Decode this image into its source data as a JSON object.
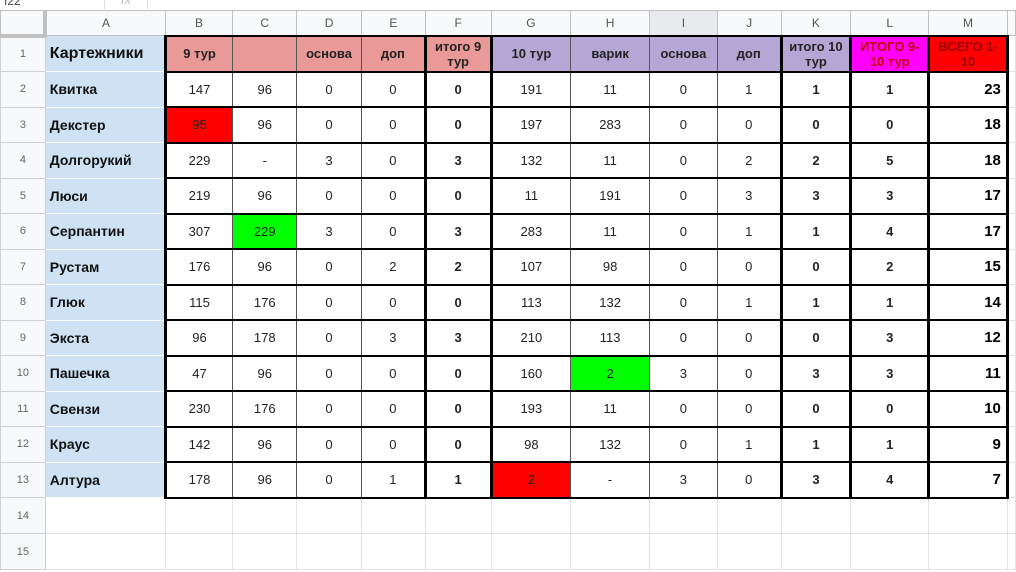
{
  "formula_bar": {
    "name_box": "I22",
    "fx": "fx"
  },
  "columns": [
    "A",
    "B",
    "C",
    "D",
    "E",
    "F",
    "G",
    "H",
    "I",
    "J",
    "K",
    "L",
    "M"
  ],
  "header": [
    "Картежники",
    "9 тур",
    "",
    "основа",
    "доп",
    "итого 9 тур",
    "10 тур",
    "варик",
    "основа",
    "доп",
    "итого 10 тур",
    "ИТОГО 9-10 тур",
    "ВСЕГО 1- 10"
  ],
  "rows": [
    [
      "Квитка",
      "147",
      "96",
      "0",
      "0",
      "0",
      "191",
      "11",
      "0",
      "1",
      "1",
      "1",
      "23"
    ],
    [
      "Декстер",
      "95",
      "96",
      "0",
      "0",
      "0",
      "197",
      "283",
      "0",
      "0",
      "0",
      "0",
      "18"
    ],
    [
      "Долгорукий",
      "229",
      "-",
      "3",
      "0",
      "3",
      "132",
      "11",
      "0",
      "2",
      "2",
      "5",
      "18"
    ],
    [
      "Люси",
      "219",
      "96",
      "0",
      "0",
      "0",
      "11",
      "191",
      "0",
      "3",
      "3",
      "3",
      "17"
    ],
    [
      "Серпантин",
      "307",
      "229",
      "3",
      "0",
      "3",
      "283",
      "11",
      "0",
      "1",
      "1",
      "4",
      "17"
    ],
    [
      "Рустам",
      "176",
      "96",
      "0",
      "2",
      "2",
      "107",
      "98",
      "0",
      "0",
      "0",
      "2",
      "15"
    ],
    [
      "Глюк",
      "115",
      "176",
      "0",
      "0",
      "0",
      "113",
      "132",
      "0",
      "1",
      "1",
      "1",
      "14"
    ],
    [
      "Экста",
      "96",
      "178",
      "0",
      "3",
      "3",
      "210",
      "113",
      "0",
      "0",
      "0",
      "3",
      "12"
    ],
    [
      "Пашечка",
      "47",
      "96",
      "0",
      "0",
      "0",
      "160",
      "2",
      "3",
      "0",
      "3",
      "3",
      "11"
    ],
    [
      "Свензи",
      "230",
      "176",
      "0",
      "0",
      "0",
      "193",
      "11",
      "0",
      "0",
      "0",
      "0",
      "10"
    ],
    [
      "Краус",
      "142",
      "96",
      "0",
      "0",
      "0",
      "98",
      "132",
      "0",
      "1",
      "1",
      "1",
      "9"
    ],
    [
      "Алтура",
      "178",
      "96",
      "0",
      "1",
      "1",
      "2",
      "-",
      "3",
      "0",
      "3",
      "4",
      "7"
    ]
  ],
  "highlights": [
    {
      "row": 3,
      "col": "B",
      "color": "#ff0000"
    },
    {
      "row": 6,
      "col": "C",
      "color": "#00ff00"
    },
    {
      "row": 10,
      "col": "H",
      "color": "#00ff00"
    },
    {
      "row": 13,
      "col": "G",
      "color": "#ff0000"
    }
  ],
  "empty_rows": [
    14,
    15
  ],
  "colors": {
    "round9": "#ea9999",
    "round10": "#b4a7d6",
    "names": "#cfe2f3",
    "total_9_10": "#ff00ff",
    "total_all": "#ff0000"
  }
}
